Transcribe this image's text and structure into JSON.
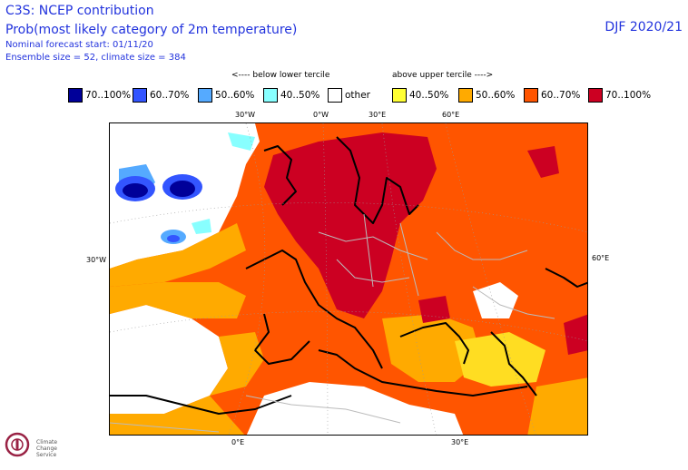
{
  "header": {
    "title": "C3S: NCEP contribution",
    "subtitle": "Prob(most likely category of 2m temperature)",
    "forecast_start": "Nominal forecast start: 01/11/20",
    "ensemble": "Ensemble size = 52, climate size = 384",
    "season": "DJF 2020/21"
  },
  "legend": {
    "below_label": "<---- below lower tercile",
    "above_label": "above upper tercile ---->",
    "items": [
      {
        "label": "70..100%",
        "color": "#000099"
      },
      {
        "label": "60..70%",
        "color": "#3355ff"
      },
      {
        "label": "50..60%",
        "color": "#55aaff"
      },
      {
        "label": "40..50%",
        "color": "#88ffff"
      },
      {
        "label": "other",
        "color": "#ffffff"
      },
      {
        "label": "40..50%",
        "color": "#ffff33"
      },
      {
        "label": "50..60%",
        "color": "#ffaa00"
      },
      {
        "label": "60..70%",
        "color": "#ff5500"
      },
      {
        "label": "70..100%",
        "color": "#cc0022"
      }
    ]
  },
  "map": {
    "top_labels": [
      "30°W",
      "0°W",
      "30°E",
      "60°E"
    ],
    "left_label": "30°W",
    "right_label": "60°E",
    "bottom_labels": [
      "0°E",
      "30°E"
    ]
  },
  "logo": {
    "text1": "Climate",
    "text2": "Change Service"
  }
}
